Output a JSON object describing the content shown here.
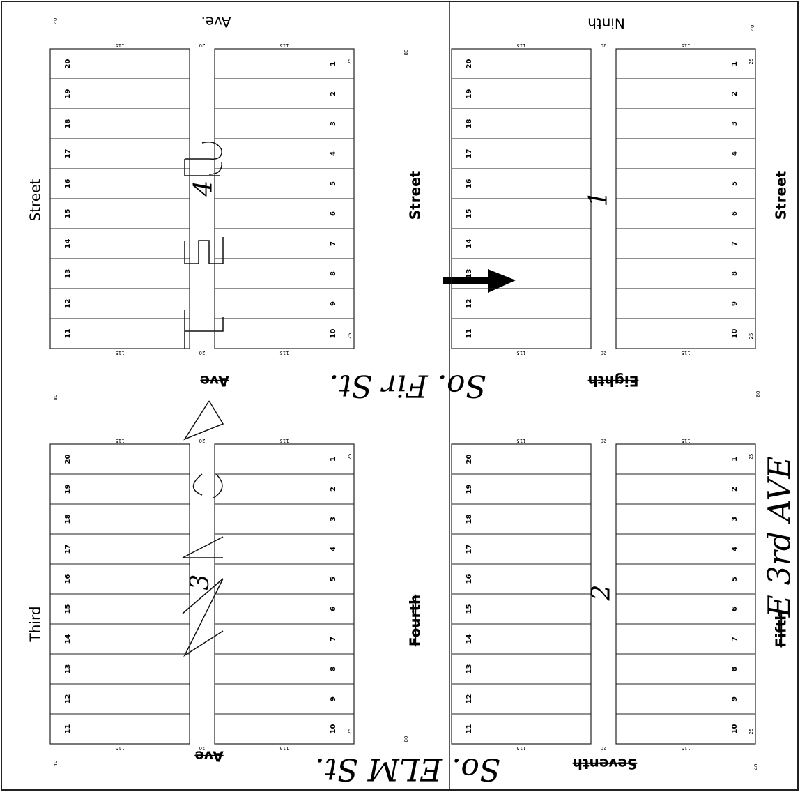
{
  "streets": {
    "top_ave": "Ave.",
    "ninth": "Ninth",
    "left_street": "Street",
    "third": "Third",
    "mid_street": "Street",
    "fourth": "Fourth",
    "right_street": "Street",
    "fifth": "Fifth",
    "center_ave": "Ave",
    "eighth": "Eighth",
    "bottom_ave": "Ave",
    "seventh": "Seventh"
  },
  "handwritten": {
    "fir": "So. Fir St.",
    "elm": "So. ELM St.",
    "third_ave": "E 3rd AVE"
  },
  "dimensions": {
    "lot_depth": "115",
    "alley": "20",
    "lot_width": "25",
    "street_half": "40",
    "street": "80"
  },
  "blocks": [
    {
      "number": "4",
      "left_lots": [
        20,
        19,
        18,
        17,
        16,
        15,
        14,
        13,
        12,
        11
      ],
      "right_lots": [
        1,
        2,
        3,
        4,
        5,
        6,
        7,
        8,
        9,
        10
      ]
    },
    {
      "number": "1",
      "left_lots": [
        20,
        19,
        18,
        17,
        16,
        15,
        14,
        13,
        12,
        11
      ],
      "right_lots": [
        1,
        2,
        3,
        4,
        5,
        6,
        7,
        8,
        9,
        10
      ]
    },
    {
      "number": "3",
      "left_lots": [
        20,
        19,
        18,
        17,
        16,
        15,
        14,
        13,
        12,
        11
      ],
      "right_lots": [
        1,
        2,
        3,
        4,
        5,
        6,
        7,
        8,
        9,
        10
      ]
    },
    {
      "number": "2",
      "left_lots": [
        20,
        19,
        18,
        17,
        16,
        15,
        14,
        13,
        12,
        11
      ],
      "right_lots": [
        1,
        2,
        3,
        4,
        5,
        6,
        7,
        8,
        9,
        10
      ]
    }
  ]
}
